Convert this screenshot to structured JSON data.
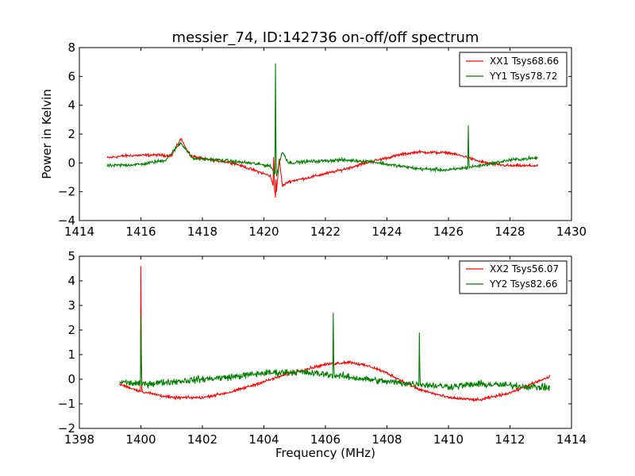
{
  "figure": {
    "title": "messier_74, ID:142736 on-off/off spectrum"
  },
  "chart_data": [
    {
      "type": "line",
      "title": "messier_74, ID:142736 on-off/off spectrum",
      "xlabel": "",
      "ylabel": "Power in Kelvin",
      "xlim": [
        1414,
        1430
      ],
      "ylim": [
        -4,
        8
      ],
      "xticks": [
        "1414",
        "1416",
        "1418",
        "1420",
        "1422",
        "1424",
        "1426",
        "1428",
        "1430"
      ],
      "yticks": [
        "−4",
        "−2",
        "0",
        "2",
        "4",
        "6",
        "8"
      ],
      "legend_position": "top-right",
      "x_range": [
        1414.9,
        1428.9
      ],
      "series": [
        {
          "name": "XX1 Tsys68.66",
          "color": "#ff0000",
          "noise": 0.08,
          "baseline": [
            [
              1414.9,
              0.35
            ],
            [
              1415.5,
              0.5
            ],
            [
              1416.5,
              0.55
            ],
            [
              1417.0,
              0.5
            ],
            [
              1417.3,
              1.7
            ],
            [
              1417.6,
              0.5
            ],
            [
              1418.0,
              0.3
            ],
            [
              1419.0,
              0.0
            ],
            [
              1419.8,
              -0.6
            ],
            [
              1420.2,
              -0.9
            ],
            [
              1420.4,
              -2.2
            ],
            [
              1420.5,
              0.3
            ],
            [
              1420.6,
              -1.6
            ],
            [
              1420.8,
              -1.3
            ],
            [
              1421.5,
              -1.0
            ],
            [
              1422.5,
              -0.5
            ],
            [
              1423.5,
              0.1
            ],
            [
              1424.5,
              0.6
            ],
            [
              1425.0,
              0.75
            ],
            [
              1426.0,
              0.7
            ],
            [
              1426.6,
              0.4
            ],
            [
              1427.0,
              0.1
            ],
            [
              1427.5,
              -0.1
            ],
            [
              1428.0,
              -0.2
            ],
            [
              1428.9,
              -0.2
            ]
          ],
          "spikes": [
            [
              1420.38,
              -2.4
            ],
            [
              1420.32,
              0.4
            ]
          ]
        },
        {
          "name": "YY1 Tsys78.72",
          "color": "#008000",
          "noise": 0.1,
          "baseline": [
            [
              1414.9,
              -0.2
            ],
            [
              1416.0,
              -0.1
            ],
            [
              1416.8,
              0.2
            ],
            [
              1417.3,
              1.4
            ],
            [
              1417.7,
              0.3
            ],
            [
              1418.5,
              0.2
            ],
            [
              1419.5,
              0.0
            ],
            [
              1420.2,
              -0.2
            ],
            [
              1420.4,
              -0.9
            ],
            [
              1420.6,
              0.8
            ],
            [
              1420.8,
              0.0
            ],
            [
              1421.5,
              0.1
            ],
            [
              1422.5,
              0.2
            ],
            [
              1423.5,
              0.1
            ],
            [
              1424.0,
              -0.1
            ],
            [
              1425.0,
              -0.4
            ],
            [
              1426.0,
              -0.5
            ],
            [
              1427.0,
              -0.2
            ],
            [
              1428.0,
              0.2
            ],
            [
              1428.9,
              0.35
            ]
          ],
          "spikes": [
            [
              1420.37,
              6.9
            ],
            [
              1426.65,
              2.6
            ]
          ]
        }
      ]
    },
    {
      "type": "line",
      "title": "",
      "xlabel": "Frequency (MHz)",
      "ylabel": "",
      "xlim": [
        1398,
        1414
      ],
      "ylim": [
        -2,
        5
      ],
      "xticks": [
        "1398",
        "1400",
        "1402",
        "1404",
        "1406",
        "1408",
        "1410",
        "1412",
        "1414"
      ],
      "yticks": [
        "−2",
        "−1",
        "0",
        "1",
        "2",
        "3",
        "4",
        "5"
      ],
      "legend_position": "top-right",
      "x_range": [
        1399.3,
        1413.3
      ],
      "series": [
        {
          "name": "XX2 Tsys56.07",
          "color": "#ff0000",
          "noise": 0.05,
          "baseline": [
            [
              1399.3,
              -0.2
            ],
            [
              1400.0,
              -0.5
            ],
            [
              1401.0,
              -0.75
            ],
            [
              1402.0,
              -0.75
            ],
            [
              1403.0,
              -0.5
            ],
            [
              1404.0,
              -0.1
            ],
            [
              1405.0,
              0.3
            ],
            [
              1406.0,
              0.6
            ],
            [
              1406.8,
              0.7
            ],
            [
              1407.5,
              0.5
            ],
            [
              1408.0,
              0.25
            ],
            [
              1409.0,
              -0.4
            ],
            [
              1410.0,
              -0.75
            ],
            [
              1411.0,
              -0.85
            ],
            [
              1412.0,
              -0.55
            ],
            [
              1413.3,
              0.1
            ]
          ],
          "spikes": [
            [
              1400.0,
              4.6
            ]
          ]
        },
        {
          "name": "YY2 Tsys82.66",
          "color": "#008000",
          "noise": 0.12,
          "baseline": [
            [
              1399.3,
              -0.1
            ],
            [
              1400.0,
              -0.2
            ],
            [
              1401.0,
              -0.1
            ],
            [
              1402.0,
              0.0
            ],
            [
              1403.0,
              0.1
            ],
            [
              1404.0,
              0.25
            ],
            [
              1405.0,
              0.3
            ],
            [
              1406.0,
              0.2
            ],
            [
              1407.0,
              0.05
            ],
            [
              1408.0,
              -0.1
            ],
            [
              1409.0,
              -0.2
            ],
            [
              1410.0,
              -0.3
            ],
            [
              1411.0,
              -0.2
            ],
            [
              1412.0,
              -0.25
            ],
            [
              1413.3,
              -0.35
            ]
          ],
          "spikes": [
            [
              1400.0,
              2.6
            ],
            [
              1406.25,
              2.7
            ],
            [
              1409.05,
              1.9
            ]
          ]
        }
      ]
    }
  ]
}
